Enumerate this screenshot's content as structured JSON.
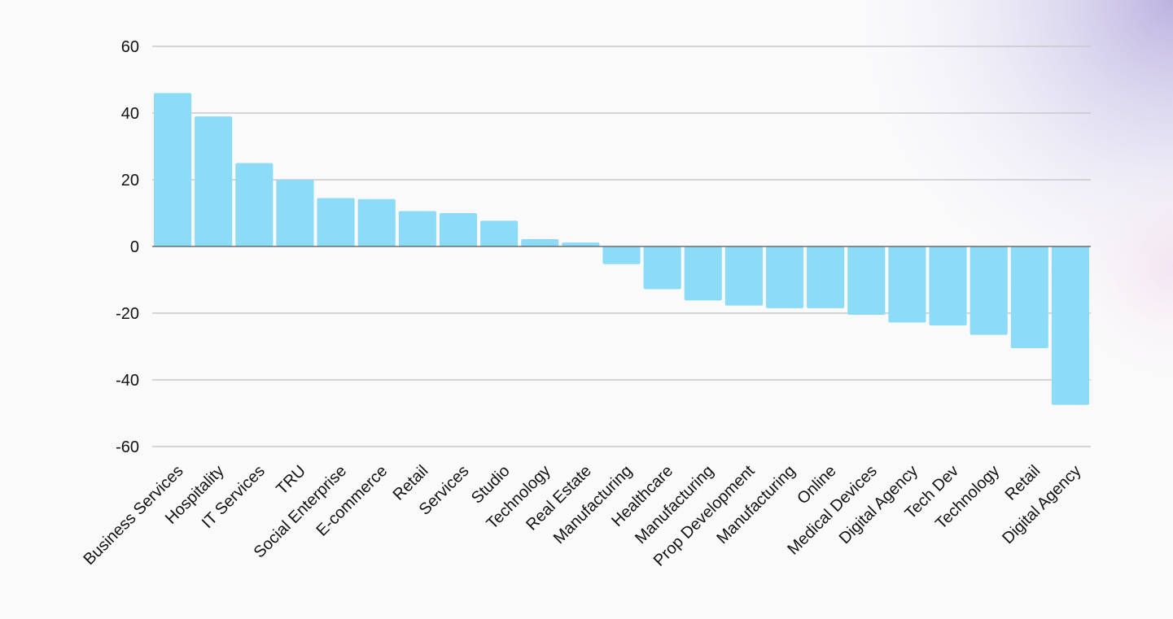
{
  "chart_data": {
    "type": "bar",
    "title": "",
    "xlabel": "",
    "ylabel": "",
    "ylim": [
      -60,
      60
    ],
    "yticks": [
      60,
      40,
      20,
      0,
      -20,
      -40,
      -60
    ],
    "grid": true,
    "categories": [
      "Business Services",
      "Hospitality",
      "IT Services",
      "TRU",
      "Social Enterprise",
      "E-commerce",
      "Retail",
      "Services",
      "Studio",
      "Technology",
      "Real Estate",
      "Manufacturing",
      "Healthcare",
      "Manufacturing",
      "Prop Development",
      "Manufacturing",
      "Online",
      "Medical Devices",
      "Digital Agency",
      "Tech Dev",
      "Technology",
      "Retail",
      "Digital Agency"
    ],
    "values": [
      46,
      39,
      25,
      20,
      14.5,
      14.2,
      10.6,
      10,
      7.7,
      2.2,
      1.2,
      -5.3,
      -12.8,
      -16.2,
      -17.7,
      -18.5,
      -18.5,
      -20.5,
      -22.8,
      -23.7,
      -26.5,
      -30.5,
      -47.5
    ],
    "colors": {
      "bar": "#8cdcf7",
      "grid": "#c8c8ce",
      "zero_line": "#555555",
      "background": "#fafafb"
    }
  }
}
